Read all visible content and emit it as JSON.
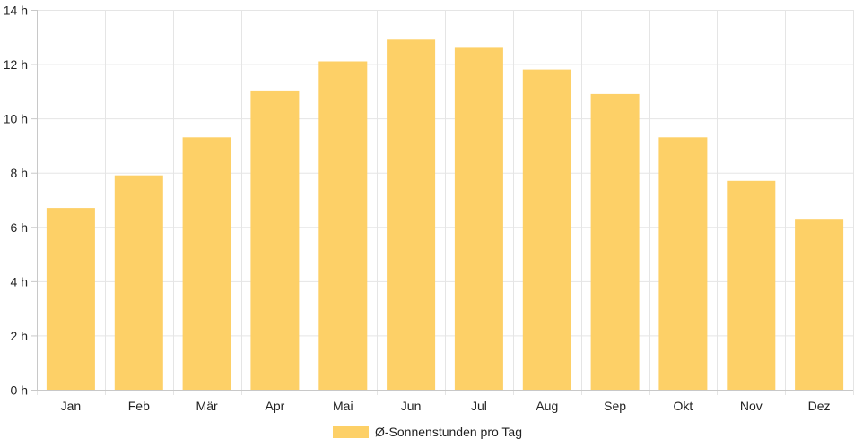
{
  "chart_data": {
    "type": "bar",
    "categories": [
      "Jan",
      "Feb",
      "Mär",
      "Apr",
      "Mai",
      "Jun",
      "Jul",
      "Aug",
      "Sep",
      "Okt",
      "Nov",
      "Dez"
    ],
    "series": [
      {
        "name": "Ø-Sonnenstunden pro Tag",
        "values": [
          6.7,
          7.9,
          9.3,
          11.0,
          12.1,
          12.9,
          12.6,
          11.8,
          10.9,
          9.3,
          7.7,
          6.3
        ],
        "color": "#fdd067"
      }
    ],
    "ylim": [
      0,
      14
    ],
    "y_ticks": [
      0,
      2,
      4,
      6,
      8,
      10,
      12,
      14
    ],
    "y_tick_labels": [
      "0 h",
      "2 h",
      "4 h",
      "6 h",
      "8 h",
      "10 h",
      "12 h",
      "14 h"
    ],
    "grid": true,
    "legend_position": "bottom-center",
    "grid_color": "#e5e5e5",
    "axis_color": "#c8c8c8"
  }
}
